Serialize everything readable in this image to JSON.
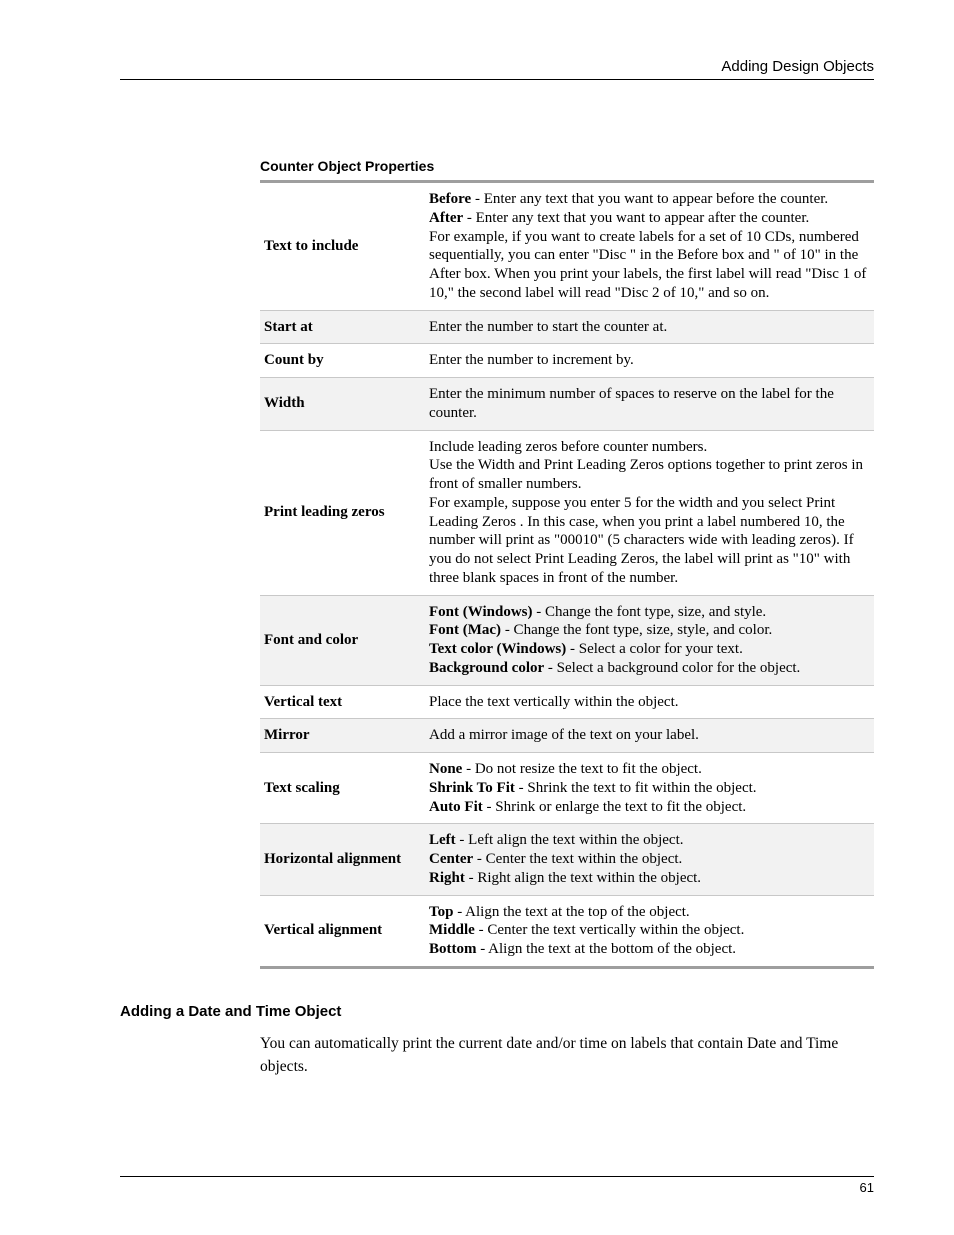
{
  "header": {
    "title": "Adding Design Objects"
  },
  "table": {
    "title": "Counter Object Properties",
    "rows": [
      {
        "label": "Text to include",
        "desc": "<b>Before</b> - Enter any text that you want to appear before the counter.<br><b>After</b> - Enter any text that you want to appear after the counter.<br>For example, if you want to create labels for a set of 10 CDs, numbered sequentially, you can enter \"Disc \" in the Before box and \" of 10\" in the After box. When you print your labels, the first label will read \"Disc 1 of 10,\" the second label will read \"Disc 2 of 10,\" and so on."
      },
      {
        "label": "Start at",
        "desc": "Enter the number to start the counter at."
      },
      {
        "label": "Count by",
        "desc": "Enter the number to increment by."
      },
      {
        "label": "Width",
        "desc": "Enter the minimum number of spaces to reserve on the label for the counter."
      },
      {
        "label": "Print leading zeros",
        "desc": "Include leading zeros before counter numbers.<br>Use the Width and Print Leading Zeros options together to print zeros in front of smaller numbers.<br>For example, suppose you enter 5 for the width and you select Print Leading Zeros . In this case, when you print a label numbered 10, the number will print as \"00010\" (5 characters wide with leading zeros). If you do not select Print Leading Zeros, the label will print as \"10\" with three blank spaces in front of the number."
      },
      {
        "label": "Font and color",
        "desc": "<b>Font (Windows)</b> - Change the font type, size, and style.<br><b>Font (Mac)</b> - Change the font type, size, style, and color.<br><b>Text color (Windows)</b> - Select a color for your text.<br><b>Background color</b> - Select a background color for the object."
      },
      {
        "label": "Vertical text",
        "desc": "Place the text vertically within the object."
      },
      {
        "label": "Mirror",
        "desc": "Add a mirror image of the text on your label."
      },
      {
        "label": "Text scaling",
        "desc": "<b>None</b> - Do not resize the text to fit the object.<br><b>Shrink To Fit</b> - Shrink the text to fit within the object.<br><b>Auto Fit</b> - Shrink or enlarge the text to fit the object."
      },
      {
        "label": "Horizontal alignment",
        "desc": "<b>Left</b> - Left align the text within the object.<br><b>Center</b> - Center the text within the object.<br><b>Right</b> - Right align the text within the object."
      },
      {
        "label": "Vertical alignment",
        "desc": "<b>Top</b> - Align the text at the top of the object.<br><b>Middle</b> - Center the text vertically within the object.<br><b>Bottom</b> - Align the text at the bottom of the object."
      }
    ]
  },
  "section": {
    "heading": "Adding a Date and Time Object",
    "body": "You can automatically print the current date and/or time on labels that contain Date and Time objects."
  },
  "footer": {
    "page_number": "61"
  }
}
